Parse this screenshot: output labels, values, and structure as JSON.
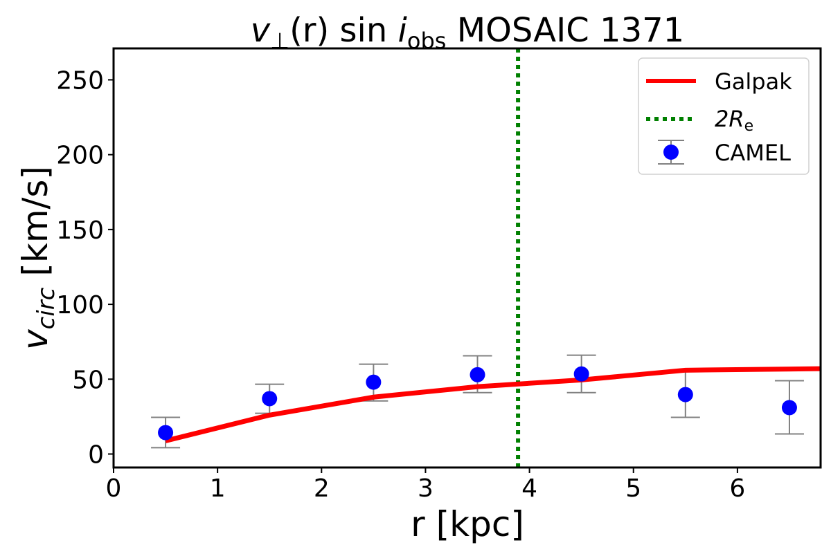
{
  "chart_data": {
    "type": "line",
    "title": {
      "prefix": "v",
      "sub1": "⊥",
      "mid": "(r) sin ",
      "ital": "i",
      "sub2": "obs",
      "suffix": " MOSAIC 1371"
    },
    "xlabel": "r [kpc]",
    "ylabel": {
      "main": "v",
      "sub": "circ",
      "unit": " [km/s]"
    },
    "xlim": [
      0,
      6.8
    ],
    "ylim": [
      -9,
      271
    ],
    "xticks": [
      0,
      1,
      2,
      3,
      4,
      5,
      6
    ],
    "yticks": [
      0,
      50,
      100,
      150,
      200,
      250
    ],
    "grid": false,
    "legend_position": "top-right",
    "series": [
      {
        "name": "Galpak",
        "kind": "line",
        "color": "#ff0000",
        "x": [
          0.5,
          1.5,
          2.5,
          3.5,
          4.5,
          5.5,
          6.8
        ],
        "y": [
          8.8,
          26,
          38,
          45,
          49.5,
          56,
          57
        ]
      },
      {
        "name": "CAMEL",
        "kind": "errorbar",
        "color": "#0000ff",
        "errcolor": "#808080",
        "x": [
          0.5,
          1.5,
          2.5,
          3.5,
          4.5,
          5.5,
          6.5
        ],
        "y": [
          14.3,
          37,
          48,
          53,
          53.5,
          39.7,
          31
        ],
        "ylow": [
          4.2,
          27.2,
          35.5,
          41,
          41,
          24.5,
          13.4
        ],
        "yhigh": [
          24.5,
          46.6,
          60,
          65.6,
          66,
          55,
          49
        ]
      }
    ],
    "vline": {
      "name": "2R",
      "sub": "e",
      "x": 3.89,
      "color": "#008000",
      "style": "dotted"
    }
  }
}
